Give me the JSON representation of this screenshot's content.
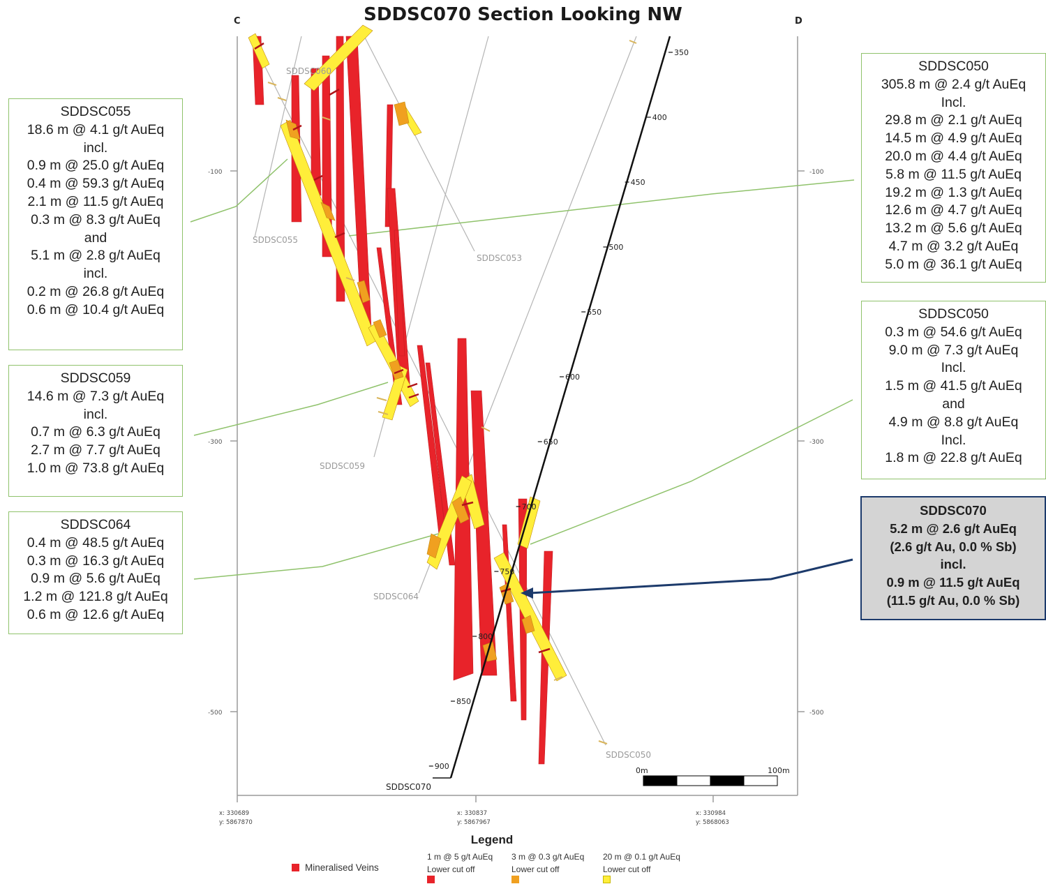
{
  "title": "SDDSC070 Section Looking NW",
  "section_ends": {
    "left": "C",
    "right": "D"
  },
  "elevation_labels": [
    "-100",
    "-300",
    "-500"
  ],
  "drill_depth_labels": [
    "350",
    "400",
    "450",
    "500",
    "550",
    "600",
    "650",
    "700",
    "750",
    "800",
    "850",
    "900"
  ],
  "hole_labels": {
    "sddsc060": "SDDSC060",
    "sddsc055": "SDDSC055",
    "sddsc053": "SDDSC053",
    "sddsc059": "SDDSC059",
    "sddsc064": "SDDSC064",
    "sddsc050": "SDDSC050",
    "sddsc070": "SDDSC070"
  },
  "coords": [
    {
      "x": "x: 330689",
      "y": "y: 5867870"
    },
    {
      "x": "x: 330837",
      "y": "y: 5867967"
    },
    {
      "x": "x: 330984",
      "y": "y: 5868063"
    }
  ],
  "scale": {
    "start": "0m",
    "end": "100m"
  },
  "boxes": {
    "sddsc055": [
      "SDDSC055",
      "18.6 m @ 4.1 g/t AuEq",
      "incl.",
      "0.9 m @ 25.0 g/t AuEq",
      "0.4 m @ 59.3 g/t AuEq",
      "2.1 m @ 11.5 g/t AuEq",
      "0.3 m @ 8.3 g/t AuEq",
      "and",
      "5.1 m @ 2.8 g/t AuEq",
      "incl.",
      "0.2 m @ 26.8 g/t AuEq",
      "0.6 m @ 10.4 g/t AuEq"
    ],
    "sddsc059": [
      "SDDSC059",
      "14.6 m @ 7.3 g/t AuEq",
      "incl.",
      "0.7 m @ 6.3 g/t AuEq",
      "2.7 m @ 7.7 g/t AuEq",
      "1.0 m @ 73.8 g/t AuEq"
    ],
    "sddsc064": [
      "SDDSC064",
      "0.4 m @ 48.5 g/t AuEq",
      "0.3 m @ 16.3 g/t AuEq",
      "0.9 m @ 5.6 g/t AuEq",
      "1.2 m @ 121.8 g/t AuEq",
      "0.6 m @ 12.6 g/t AuEq"
    ],
    "sddsc050_a": [
      "SDDSC050",
      "305.8 m @ 2.4 g/t AuEq",
      "Incl.",
      "29.8 m @ 2.1 g/t AuEq",
      "14.5 m @ 4.9 g/t AuEq",
      "20.0 m @ 4.4 g/t AuEq",
      "5.8 m @ 11.5 g/t AuEq",
      "19.2 m @ 1.3 g/t AuEq",
      "12.6 m @ 4.7 g/t AuEq",
      "13.2 m @ 5.6 g/t AuEq",
      "4.7 m @ 3.2 g/t AuEq",
      "5.0 m @ 36.1 g/t AuEq"
    ],
    "sddsc050_b": [
      "SDDSC050",
      "0.3 m @ 54.6 g/t AuEq",
      "9.0 m @ 7.3 g/t AuEq",
      "Incl.",
      "1.5 m @ 41.5 g/t AuEq",
      "and",
      "4.9 m @ 8.8 g/t AuEq",
      "Incl.",
      "1.8 m @ 22.8 g/t AuEq"
    ],
    "sddsc070": [
      "SDDSC070",
      "5.2 m @ 2.6 g/t AuEq",
      "(2.6 g/t Au, 0.0 % Sb)",
      "incl.",
      "0.9 m @ 11.5 g/t AuEq",
      "(11.5 g/t Au, 0.0 % Sb)"
    ]
  },
  "legend": {
    "title": "Legend",
    "veins_label": "Mineralised Veins",
    "items": [
      {
        "label": "1 m @ 5 g/t AuEq",
        "sub": "Lower cut off",
        "color": "#e8232a"
      },
      {
        "label": "3 m @ 0.3 g/t AuEq",
        "sub": "Lower cut off",
        "color": "#f0a020"
      },
      {
        "label": "20 m @ 0.1 g/t AuEq",
        "sub": "Lower cut off",
        "color": "#ffee3a"
      }
    ]
  },
  "colors": {
    "vein_red": "#e8232a",
    "intercept_orange": "#f0a020",
    "intercept_yellow": "#ffee3a",
    "leader_green": "#8fc26b",
    "arrow_navy": "#1c3a6b"
  }
}
